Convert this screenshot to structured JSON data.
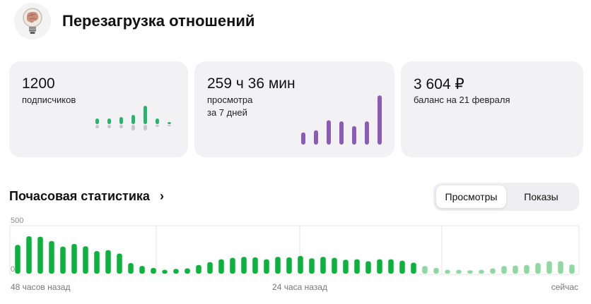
{
  "header": {
    "channel_title": "Перезагрузка отношений",
    "avatar_icon": "lightbulb-brain-icon"
  },
  "cards": [
    {
      "value": "1200",
      "label_lines": [
        "подписчиков"
      ],
      "chart_data": {
        "type": "bar",
        "values": [
          8,
          8,
          10,
          13,
          26,
          8,
          3
        ],
        "below": [
          5,
          5,
          5,
          8,
          8,
          3,
          2
        ],
        "series_color": "#27b46b",
        "below_color": "#c7c7c7"
      }
    },
    {
      "value": "259 ч 36 мин",
      "label_lines": [
        "просмотра",
        "за 7 дней"
      ],
      "chart_data": {
        "type": "bar",
        "values": [
          23,
          27,
          46,
          44,
          35,
          44,
          93
        ],
        "series_color": "#8a5cb6"
      }
    },
    {
      "value": "3 604 ₽",
      "label_lines": [
        "баланс на 21 февраля"
      ]
    }
  ],
  "hourly_section": {
    "title": "Почасовая статистика",
    "chevron_icon": "chevron-right-icon",
    "tabs": [
      {
        "label": "Просмотры",
        "active": true
      },
      {
        "label": "Показы",
        "active": false
      }
    ]
  },
  "chart_data": {
    "type": "bar",
    "ylim": [
      0,
      500
    ],
    "y_ticks": [
      "500",
      "0"
    ],
    "x_labels": [
      "48 часов назад",
      "24 часа назад",
      "сейчас"
    ],
    "grid": true,
    "colors": {
      "main": "#0bb33d",
      "recent": "#8fd8a4"
    },
    "recent_count": 14,
    "values": [
      300,
      390,
      385,
      340,
      282,
      310,
      285,
      235,
      245,
      210,
      110,
      80,
      60,
      40,
      50,
      55,
      90,
      120,
      150,
      165,
      175,
      170,
      150,
      175,
      170,
      185,
      160,
      175,
      165,
      145,
      150,
      130,
      150,
      150,
      135,
      115,
      80,
      60,
      40,
      40,
      35,
      40,
      55,
      80,
      85,
      90,
      110,
      130,
      130,
      95
    ]
  }
}
